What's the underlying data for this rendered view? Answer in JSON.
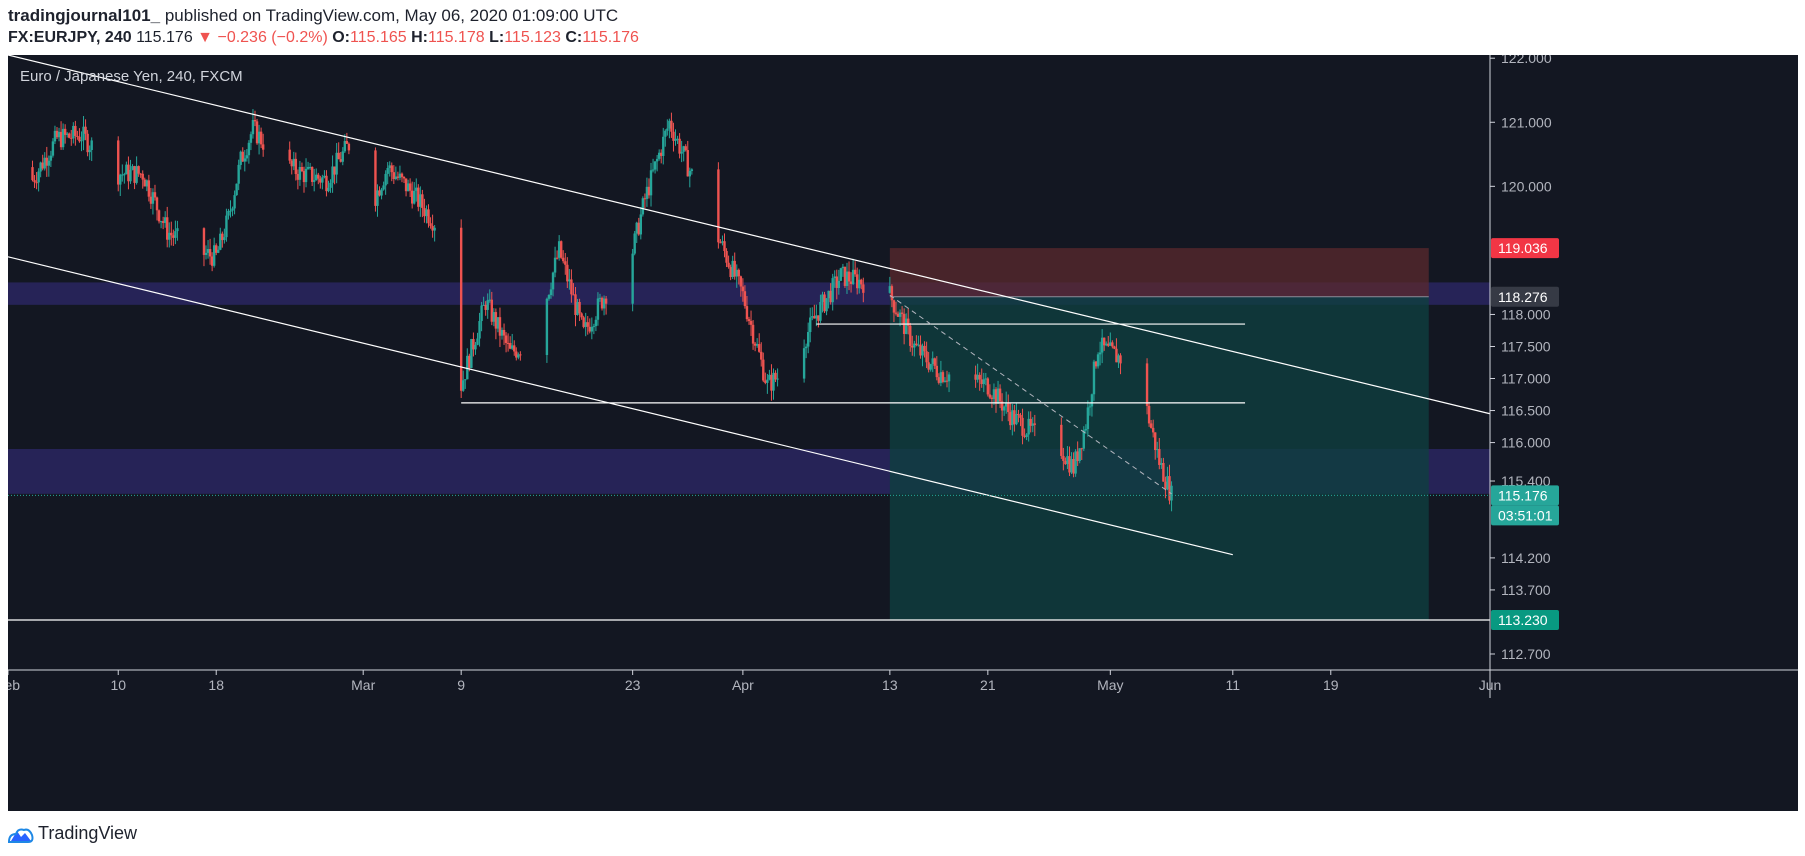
{
  "header": {
    "user": "tradingjournal101_",
    "published": " published on TradingView.com, May 06, 2020 01:09:00 UTC",
    "symbol": "FX:EURJPY, 240",
    "last": "115.176",
    "change_arrow": "▼",
    "change": "−0.236 (−0.2%)",
    "o_label": "O:",
    "o_value": "115.165",
    "h_label": "H:",
    "h_value": "115.178",
    "l_label": "L:",
    "l_value": "115.123",
    "c_label": "C:",
    "c_value": "115.176"
  },
  "chart_label": "Euro / Japanese Yen, 240, FXCM",
  "footer": {
    "brand": "TradingView"
  },
  "colors": {
    "background": "#131722",
    "up": "#26a69a",
    "down": "#ef5350",
    "line": "#ffffff",
    "zone": "#2a2660",
    "stop_zone": "#5b2a2e",
    "target_zone": "#0f3e40",
    "axis_text": "#b2b5be",
    "stop_label_bg": "#f23645",
    "target_label_bg": "#089981",
    "entry_label_bg": "#363a45"
  },
  "chart_data": {
    "type": "candlestick",
    "title": "Euro / Japanese Yen, 240, FXCM",
    "timeframe": "240",
    "ylim": [
      112.45,
      122.05
    ],
    "xlim": [
      "2020-02-01",
      "2020-06-01"
    ],
    "y_ticks": [
      "122.000",
      "121.000",
      "120.000",
      "118.000",
      "117.500",
      "117.000",
      "116.500",
      "116.000",
      "115.400",
      "114.200",
      "113.700",
      "112.700"
    ],
    "x_ticks": [
      {
        "label": "Feb",
        "date": "2020-02-01"
      },
      {
        "label": "10",
        "date": "2020-02-10"
      },
      {
        "label": "18",
        "date": "2020-02-18"
      },
      {
        "label": "Mar",
        "date": "2020-03-01"
      },
      {
        "label": "9",
        "date": "2020-03-09"
      },
      {
        "label": "23",
        "date": "2020-03-23"
      },
      {
        "label": "Apr",
        "date": "2020-04-01"
      },
      {
        "label": "13",
        "date": "2020-04-13"
      },
      {
        "label": "21",
        "date": "2020-04-21"
      },
      {
        "label": "May",
        "date": "2020-05-01"
      },
      {
        "label": "11",
        "date": "2020-05-11"
      },
      {
        "label": "19",
        "date": "2020-05-19"
      },
      {
        "label": "Jun",
        "date": "2020-06-01"
      }
    ],
    "price_labels": [
      {
        "label": "stop",
        "value": "119.036"
      },
      {
        "label": "entry",
        "value": "118.276"
      },
      {
        "label": "last",
        "value": "115.176"
      },
      {
        "label": "countdown",
        "value": "03:51:01"
      },
      {
        "label": "target",
        "value": "113.230"
      }
    ],
    "close_path": [
      {
        "date": "2020-02-01",
        "close": 120.3
      },
      {
        "date": "2020-02-03",
        "close": 120.1
      },
      {
        "date": "2020-02-05",
        "close": 120.75
      },
      {
        "date": "2020-02-07",
        "close": 120.8
      },
      {
        "date": "2020-02-10",
        "close": 120.2
      },
      {
        "date": "2020-02-12",
        "close": 120.2
      },
      {
        "date": "2020-02-14",
        "close": 119.3
      },
      {
        "date": "2020-02-16",
        "close": 119.0
      },
      {
        "date": "2020-02-18",
        "close": 118.9
      },
      {
        "date": "2020-02-19",
        "close": 119.5
      },
      {
        "date": "2020-02-20",
        "close": 120.4
      },
      {
        "date": "2020-02-21",
        "close": 120.9
      },
      {
        "date": "2020-02-23",
        "close": 120.4
      },
      {
        "date": "2020-02-25",
        "close": 120.2
      },
      {
        "date": "2020-02-27",
        "close": 120.1
      },
      {
        "date": "2020-02-29",
        "close": 120.7
      },
      {
        "date": "2020-03-01",
        "close": 119.4
      },
      {
        "date": "2020-03-03",
        "close": 120.3
      },
      {
        "date": "2020-03-05",
        "close": 119.9
      },
      {
        "date": "2020-03-07",
        "close": 119.4
      },
      {
        "date": "2020-03-09",
        "close": 116.9
      },
      {
        "date": "2020-03-11",
        "close": 118.2
      },
      {
        "date": "2020-03-13",
        "close": 117.4
      },
      {
        "date": "2020-03-15",
        "close": 117.6
      },
      {
        "date": "2020-03-17",
        "close": 119.0
      },
      {
        "date": "2020-03-19",
        "close": 117.7
      },
      {
        "date": "2020-03-21",
        "close": 118.4
      },
      {
        "date": "2020-03-23",
        "close": 119.0
      },
      {
        "date": "2020-03-24",
        "close": 119.8
      },
      {
        "date": "2020-03-26",
        "close": 121.0
      },
      {
        "date": "2020-03-28",
        "close": 120.1
      },
      {
        "date": "2020-03-30",
        "close": 119.2
      },
      {
        "date": "2020-04-01",
        "close": 118.3
      },
      {
        "date": "2020-04-03",
        "close": 116.9
      },
      {
        "date": "2020-04-05",
        "close": 117.2
      },
      {
        "date": "2020-04-07",
        "close": 118.0
      },
      {
        "date": "2020-04-09",
        "close": 118.6
      },
      {
        "date": "2020-04-11",
        "close": 118.5
      },
      {
        "date": "2020-04-13",
        "close": 118.3
      },
      {
        "date": "2020-04-15",
        "close": 117.5
      },
      {
        "date": "2020-04-17",
        "close": 117.1
      },
      {
        "date": "2020-04-19",
        "close": 117.0
      },
      {
        "date": "2020-04-21",
        "close": 116.9
      },
      {
        "date": "2020-04-23",
        "close": 116.4
      },
      {
        "date": "2020-04-25",
        "close": 116.1
      },
      {
        "date": "2020-04-27",
        "close": 115.9
      },
      {
        "date": "2020-04-28",
        "close": 115.6
      },
      {
        "date": "2020-04-29",
        "close": 116.3
      },
      {
        "date": "2020-04-30",
        "close": 117.5
      },
      {
        "date": "2020-05-02",
        "close": 117.3
      },
      {
        "date": "2020-05-04",
        "close": 116.5
      },
      {
        "date": "2020-05-05",
        "close": 115.7
      },
      {
        "date": "2020-05-06",
        "close": 115.176
      }
    ],
    "zones": [
      {
        "name": "resistance",
        "y_top": 118.5,
        "y_bottom": 118.15,
        "from": "2020-02-01",
        "to": "2020-06-01"
      },
      {
        "name": "support",
        "y_top": 115.9,
        "y_bottom": 115.2,
        "from": "2020-02-01",
        "to": "2020-06-01"
      }
    ],
    "position": {
      "type": "short",
      "start": "2020-04-13",
      "end": "2020-05-27",
      "entry": 118.276,
      "stop": 119.036,
      "target": 113.23
    },
    "trendlines": [
      {
        "from": {
          "date": "2020-02-01",
          "price": 122.05
        },
        "to": {
          "date": "2020-06-01",
          "price": 116.45
        }
      },
      {
        "from": {
          "date": "2020-02-01",
          "price": 118.9
        },
        "to": {
          "date": "2020-05-11",
          "price": 114.25
        }
      },
      {
        "from": {
          "date": "2020-04-07",
          "price": 117.85
        },
        "to": {
          "date": "2020-05-12",
          "price": 117.85
        }
      },
      {
        "from": {
          "date": "2020-03-09",
          "price": 116.62
        },
        "to": {
          "date": "2020-05-12",
          "price": 116.62
        }
      },
      {
        "from": {
          "date": "2020-02-01",
          "price": 113.23
        },
        "to": {
          "date": "2020-06-01",
          "price": 113.23
        }
      }
    ],
    "dashed_lines": [
      {
        "from": {
          "date": "2020-04-13",
          "price": 118.3
        },
        "to": {
          "date": "2020-05-06",
          "price": 115.2
        }
      }
    ]
  }
}
